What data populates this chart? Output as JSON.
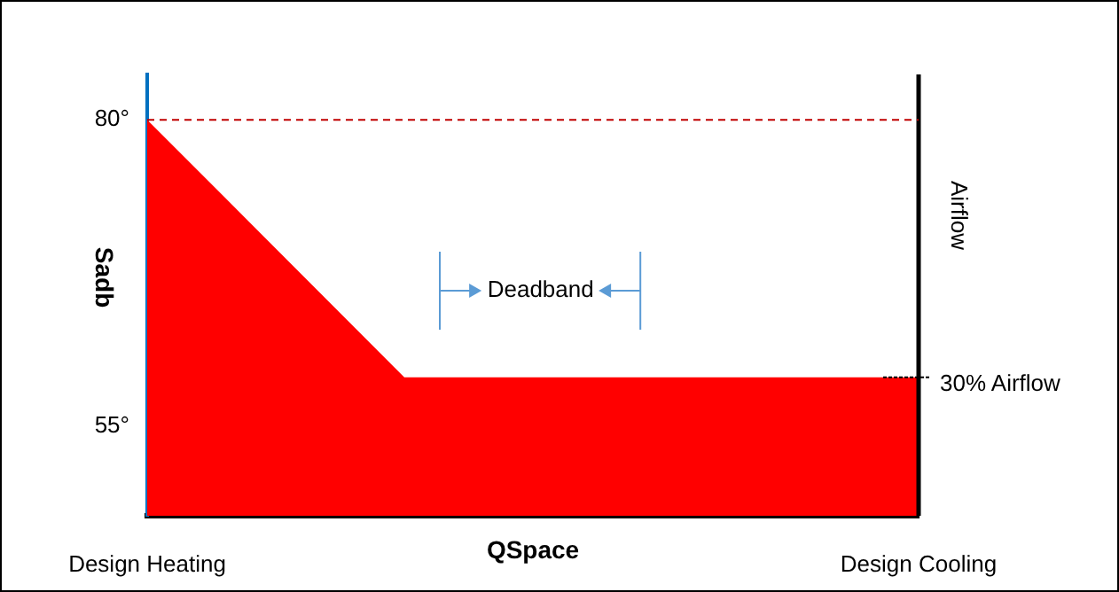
{
  "chart_data": {
    "type": "area",
    "xlabel": "QSpace",
    "ylabel": "Sadb",
    "y2label": "Airflow",
    "categories": [
      "Design Heating",
      null,
      null,
      "Design Cooling"
    ],
    "series": [
      {
        "color": "#ff0000",
        "values": [
          80,
          59,
          59,
          59
        ]
      }
    ],
    "ylim": [
      47.7,
      83.7
    ],
    "yticks": [
      {
        "value": 55,
        "label": "55°"
      },
      {
        "value": 80,
        "label": "80°"
      }
    ],
    "ref_lines": [
      {
        "axis": "y",
        "value": 80,
        "label": null,
        "color": "#c00000",
        "line_style": "dashed"
      }
    ],
    "annotations": [
      "Deadband",
      {
        "text": "30% Airflow",
        "x": "Design Cooling",
        "y": 59
      }
    ],
    "grid": false,
    "legend": false,
    "marker": "none"
  }
}
